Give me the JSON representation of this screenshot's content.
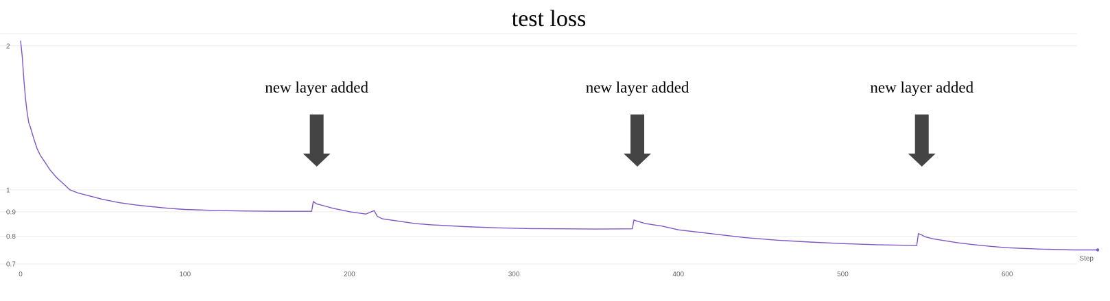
{
  "chart_data": {
    "type": "line",
    "title": "test loss",
    "xlabel": "Step",
    "ylabel": "",
    "y_scale": "log",
    "xlim": [
      0,
      655
    ],
    "ylim": [
      0.7,
      2.1
    ],
    "xticks": [
      0,
      100,
      200,
      300,
      400,
      500,
      600
    ],
    "xtick_labels": [
      "0",
      "100",
      "200",
      "300",
      "400",
      "500",
      "600"
    ],
    "yticks": [
      0.7,
      0.8,
      0.9,
      1,
      2
    ],
    "ytick_labels": [
      "0.7",
      "0.8",
      "0.9",
      "1",
      "2"
    ],
    "grid": true,
    "line_color": "#7e57c2",
    "annotation_color": "#444444",
    "annotations": [
      {
        "text": "new layer added",
        "x": 178
      },
      {
        "text": "new layer added",
        "x": 373
      },
      {
        "text": "new layer added",
        "x": 546
      }
    ],
    "series": [
      {
        "x": [
          0,
          1,
          2,
          3,
          4,
          5,
          6,
          8,
          10,
          12,
          15,
          18,
          22,
          26,
          30,
          35,
          40,
          45,
          50,
          60,
          70,
          80,
          90,
          100,
          120,
          140,
          160,
          177,
          178,
          180,
          185,
          190,
          200,
          210,
          215,
          217,
          220,
          230,
          240,
          250,
          270,
          290,
          310,
          330,
          350,
          372,
          373,
          375,
          380,
          385,
          390,
          400,
          420,
          440,
          460,
          480,
          500,
          520,
          545,
          546,
          548,
          550,
          555,
          560,
          570,
          580,
          590,
          600,
          620,
          640,
          655
        ],
        "values": [
          2.05,
          1.9,
          1.7,
          1.55,
          1.45,
          1.38,
          1.35,
          1.28,
          1.22,
          1.18,
          1.14,
          1.1,
          1.06,
          1.03,
          1.0,
          0.985,
          0.975,
          0.965,
          0.955,
          0.94,
          0.93,
          0.922,
          0.915,
          0.91,
          0.905,
          0.903,
          0.902,
          0.902,
          0.945,
          0.935,
          0.925,
          0.915,
          0.9,
          0.89,
          0.905,
          0.88,
          0.87,
          0.86,
          0.85,
          0.845,
          0.838,
          0.833,
          0.83,
          0.829,
          0.828,
          0.829,
          0.865,
          0.86,
          0.85,
          0.845,
          0.84,
          0.825,
          0.81,
          0.795,
          0.785,
          0.778,
          0.772,
          0.768,
          0.765,
          0.81,
          0.805,
          0.798,
          0.79,
          0.785,
          0.775,
          0.768,
          0.762,
          0.757,
          0.752,
          0.749,
          0.749
        ]
      }
    ]
  }
}
